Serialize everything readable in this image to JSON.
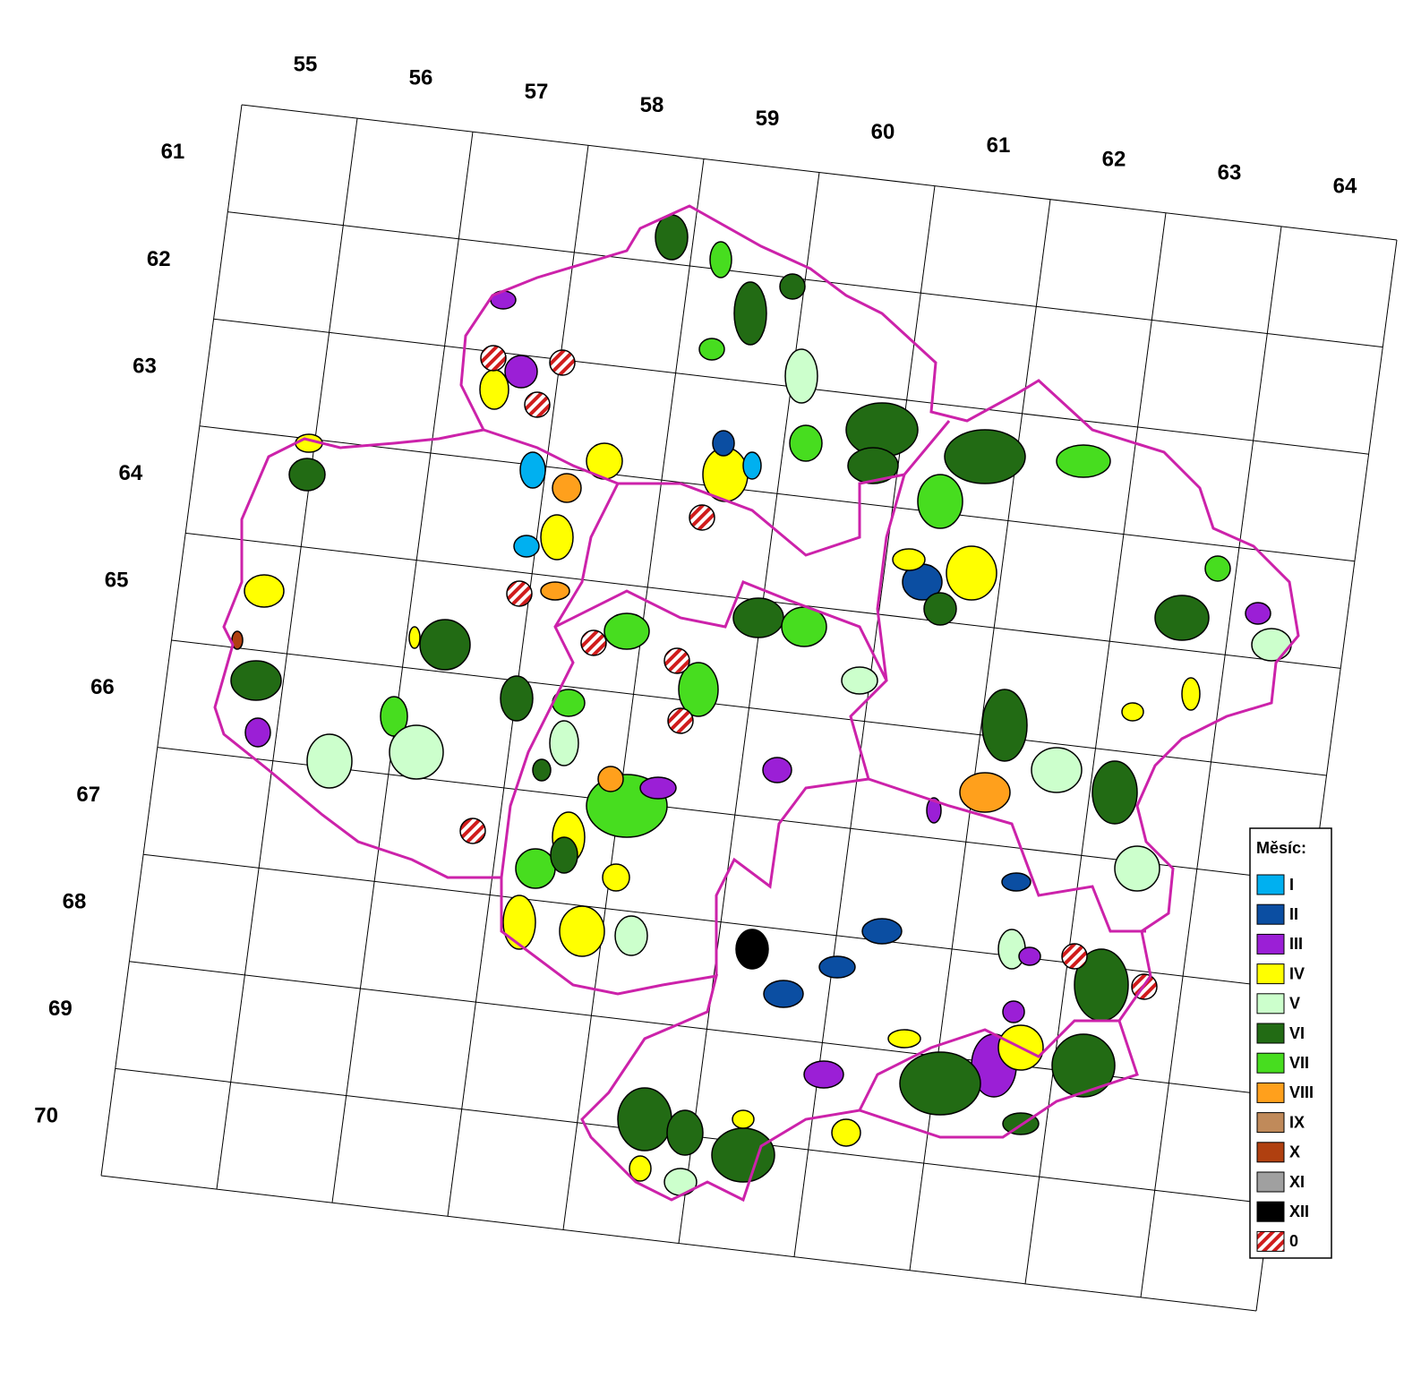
{
  "grid": {
    "columns": [
      "55",
      "56",
      "57",
      "58",
      "59",
      "60",
      "61",
      "62",
      "63",
      "64"
    ],
    "rows": [
      "61",
      "62",
      "63",
      "64",
      "65",
      "66",
      "67",
      "68",
      "69",
      "70"
    ]
  },
  "legend": {
    "title": "Měsíc:",
    "items": [
      {
        "label": "I",
        "color": "#00b0f0"
      },
      {
        "label": "II",
        "color": "#0b4ea2"
      },
      {
        "label": "III",
        "color": "#9b1fd6"
      },
      {
        "label": "IV",
        "color": "#ffff00"
      },
      {
        "label": "V",
        "color": "#ccffcc"
      },
      {
        "label": "VI",
        "color": "#226b14"
      },
      {
        "label": "VII",
        "color": "#47dd1f"
      },
      {
        "label": "VIII",
        "color": "#ffa01c"
      },
      {
        "label": "IX",
        "color": "#c08a5a"
      },
      {
        "label": "X",
        "color": "#b04010"
      },
      {
        "label": "XI",
        "color": "#a0a0a0"
      },
      {
        "label": "XII",
        "color": "#000000"
      },
      {
        "label": "0",
        "color": "#d01c1c",
        "pattern": "hatch"
      }
    ]
  }
}
